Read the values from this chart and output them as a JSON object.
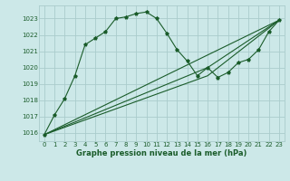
{
  "xlabel": "Graphe pression niveau de la mer (hPa)",
  "bg_color": "#cce8e8",
  "grid_color": "#aacccc",
  "line_color": "#1a5c2a",
  "xlim": [
    -0.5,
    23.5
  ],
  "ylim": [
    1015.5,
    1023.8
  ],
  "yticks": [
    1016,
    1017,
    1018,
    1019,
    1020,
    1021,
    1022,
    1023
  ],
  "xticks": [
    0,
    1,
    2,
    3,
    4,
    5,
    6,
    7,
    8,
    9,
    10,
    11,
    12,
    13,
    14,
    15,
    16,
    17,
    18,
    19,
    20,
    21,
    22,
    23
  ],
  "series1_x": [
    0,
    1,
    2,
    3,
    4,
    5,
    6,
    7,
    8,
    9,
    10,
    11,
    12,
    13,
    14,
    15,
    16,
    17,
    18,
    19,
    20,
    21,
    22,
    23
  ],
  "series1_y": [
    1015.9,
    1017.1,
    1018.1,
    1019.5,
    1021.4,
    1021.8,
    1022.2,
    1023.0,
    1023.1,
    1023.3,
    1023.4,
    1023.0,
    1022.1,
    1021.1,
    1020.4,
    1019.5,
    1020.0,
    1019.4,
    1019.7,
    1020.3,
    1020.5,
    1021.1,
    1022.2,
    1022.9
  ],
  "series2_x": [
    0,
    23
  ],
  "series2_y": [
    1015.9,
    1022.9
  ],
  "series3_x": [
    0,
    16,
    23
  ],
  "series3_y": [
    1015.9,
    1020.0,
    1022.9
  ],
  "series4_x": [
    0,
    16,
    23
  ],
  "series4_y": [
    1015.9,
    1019.5,
    1022.9
  ],
  "tick_fontsize": 5.0,
  "xlabel_fontsize": 6.0
}
